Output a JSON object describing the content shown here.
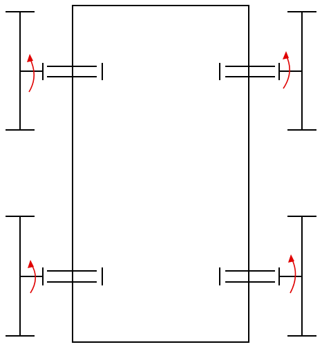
{
  "diagram": {
    "stroke_color": "#000000",
    "rotation_arrow_color": "#e00000",
    "wheels": [
      {
        "id": "top-left",
        "side": "left"
      },
      {
        "id": "top-right",
        "side": "right"
      },
      {
        "id": "bottom-left",
        "side": "left"
      },
      {
        "id": "bottom-right",
        "side": "right"
      }
    ]
  }
}
